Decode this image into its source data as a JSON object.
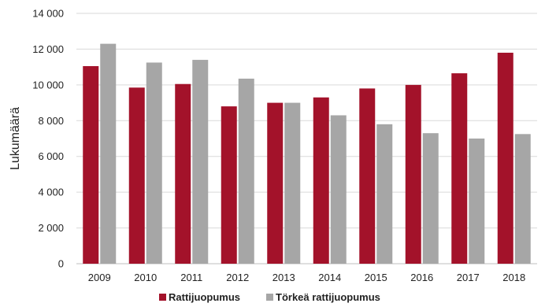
{
  "chart_data": {
    "type": "bar",
    "ylabel": "Lukumäärä",
    "ylim": [
      0,
      14000
    ],
    "yticks": [
      0,
      2000,
      4000,
      6000,
      8000,
      10000,
      12000,
      14000
    ],
    "ytick_labels": [
      "0",
      "2 000",
      "4 000",
      "6 000",
      "8 000",
      "10 000",
      "12 000",
      "14 000"
    ],
    "categories": [
      "2009",
      "2010",
      "2011",
      "2012",
      "2013",
      "2014",
      "2015",
      "2016",
      "2017",
      "2018"
    ],
    "series": [
      {
        "name": "Rattijuopumus",
        "color": "#A3122A",
        "values": [
          11050,
          9850,
          10050,
          8800,
          9000,
          9300,
          9800,
          10000,
          10650,
          11800
        ]
      },
      {
        "name": "Törkeä rattijuopumus",
        "color": "#A6A6A6",
        "values": [
          12300,
          11250,
          11400,
          10350,
          9000,
          8300,
          7800,
          7300,
          7000,
          7250
        ]
      }
    ],
    "grid": true,
    "legend_position": "bottom"
  }
}
